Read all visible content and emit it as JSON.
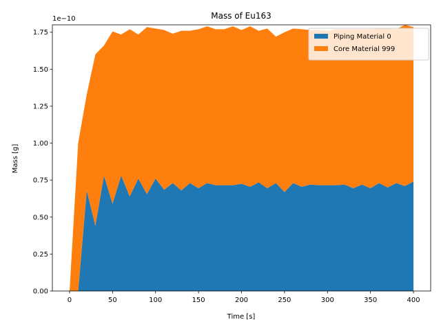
{
  "chart_data": {
    "type": "area",
    "stacked": true,
    "title": "Mass of Eu163",
    "xlabel": "Time [s]",
    "ylabel": "Mass [g]",
    "y_scale_text": "1e−10",
    "y_scale": 1e-10,
    "xlim": [
      -20,
      420
    ],
    "ylim": [
      0,
      1.8
    ],
    "xticks": [
      0,
      50,
      100,
      150,
      200,
      250,
      300,
      350,
      400
    ],
    "yticks": [
      0.0,
      0.25,
      0.5,
      0.75,
      1.0,
      1.25,
      1.5,
      1.75
    ],
    "ytick_labels": [
      "0.00",
      "0.25",
      "0.50",
      "0.75",
      "1.00",
      "1.25",
      "1.50",
      "1.75"
    ],
    "grid": false,
    "legend_position": "top-right",
    "x": [
      0,
      10,
      20,
      30,
      40,
      50,
      60,
      70,
      80,
      90,
      100,
      110,
      120,
      130,
      140,
      150,
      160,
      170,
      180,
      190,
      200,
      210,
      220,
      230,
      240,
      250,
      260,
      270,
      280,
      290,
      300,
      310,
      320,
      330,
      340,
      350,
      360,
      370,
      380,
      390,
      400
    ],
    "series": [
      {
        "name": "Piping Material 0",
        "color": "#1f77b4",
        "values": [
          0,
          0,
          0.68,
          0.44,
          0.78,
          0.59,
          0.78,
          0.64,
          0.76,
          0.655,
          0.76,
          0.685,
          0.73,
          0.68,
          0.73,
          0.695,
          0.73,
          0.715,
          0.715,
          0.715,
          0.725,
          0.705,
          0.735,
          0.695,
          0.73,
          0.67,
          0.73,
          0.705,
          0.72,
          0.715,
          0.715,
          0.715,
          0.72,
          0.695,
          0.72,
          0.695,
          0.73,
          0.7,
          0.73,
          0.71,
          0.74
        ]
      },
      {
        "name": "Core Material 999",
        "color": "#ff7f0e",
        "values": [
          0,
          1.0,
          0.65,
          1.16,
          0.88,
          1.165,
          0.955,
          1.13,
          0.975,
          1.13,
          1.015,
          1.08,
          1.01,
          1.08,
          1.03,
          1.075,
          1.06,
          1.055,
          1.055,
          1.075,
          1.04,
          1.085,
          1.025,
          1.08,
          0.99,
          1.08,
          1.045,
          1.065,
          1.045,
          1.05,
          1.045,
          1.055,
          1.05,
          1.075,
          1.05,
          1.075,
          1.045,
          1.075,
          1.04,
          1.09,
          1.045
        ]
      }
    ]
  }
}
